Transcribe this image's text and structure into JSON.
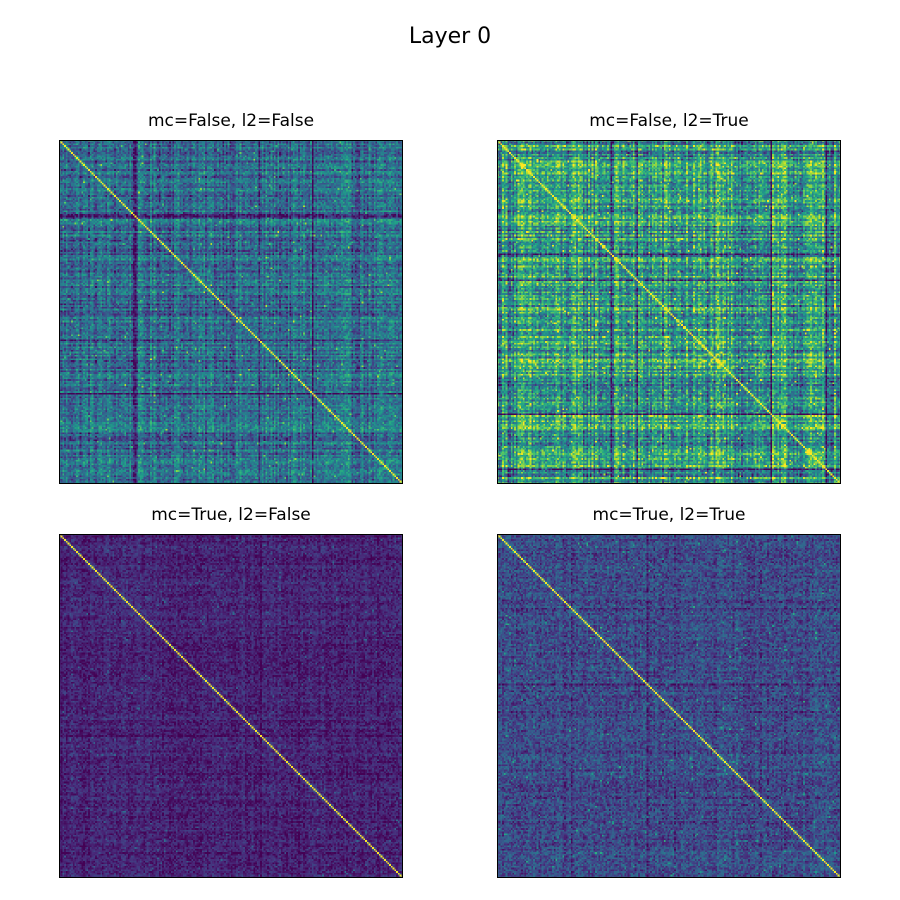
{
  "figure": {
    "title": "Layer 0"
  },
  "chart_data": [
    {
      "type": "heatmap",
      "title": "mc=False, l2=False",
      "matrix_size": 200,
      "colormap": "viridis",
      "xticks": [],
      "yticks": [],
      "diagonal": "bright",
      "mean_level": 0.35,
      "spread": 0.16,
      "band_strength": 0.12
    },
    {
      "type": "heatmap",
      "title": "mc=False, l2=True",
      "matrix_size": 200,
      "colormap": "viridis",
      "xticks": [],
      "yticks": [],
      "diagonal": "bright",
      "mean_level": 0.52,
      "spread": 0.2,
      "band_strength": 0.2
    },
    {
      "type": "heatmap",
      "title": "mc=True, l2=False",
      "matrix_size": 200,
      "colormap": "viridis",
      "xticks": [],
      "yticks": [],
      "diagonal": "bright",
      "mean_level": 0.1,
      "spread": 0.09,
      "band_strength": 0.03
    },
    {
      "type": "heatmap",
      "title": "mc=True, l2=True",
      "matrix_size": 200,
      "colormap": "viridis",
      "xticks": [],
      "yticks": [],
      "diagonal": "bright",
      "mean_level": 0.22,
      "spread": 0.14,
      "band_strength": 0.04
    }
  ]
}
